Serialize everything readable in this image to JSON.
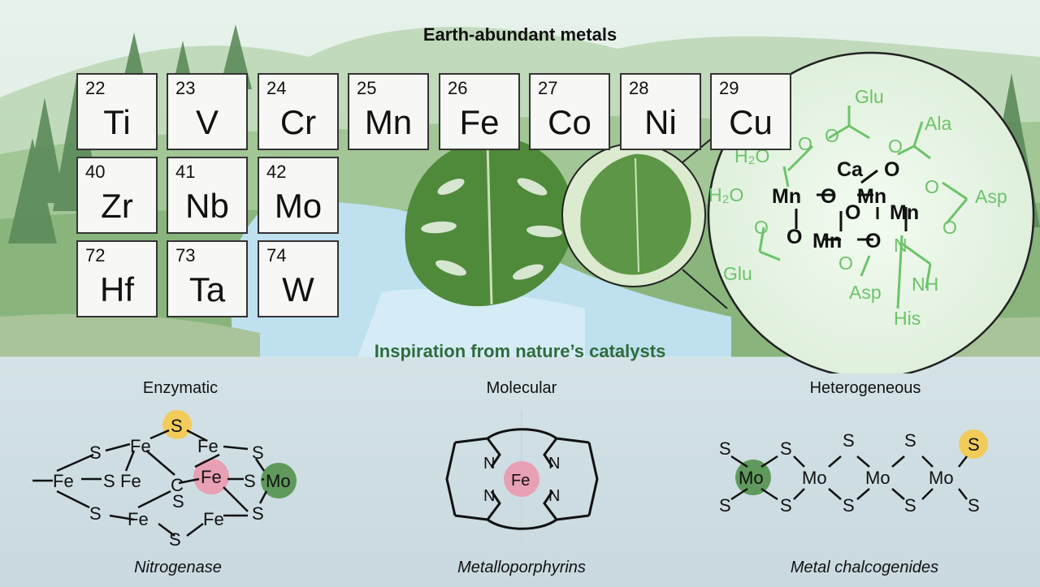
{
  "title": "Earth-abundant metals",
  "subtitle": "Inspiration from nature’s catalysts",
  "elements": [
    {
      "number": "22",
      "symbol": "Ti"
    },
    {
      "number": "23",
      "symbol": "V"
    },
    {
      "number": "24",
      "symbol": "Cr"
    },
    {
      "number": "25",
      "symbol": "Mn"
    },
    {
      "number": "26",
      "symbol": "Fe"
    },
    {
      "number": "27",
      "symbol": "Co"
    },
    {
      "number": "28",
      "symbol": "Ni"
    },
    {
      "number": "29",
      "symbol": "Cu"
    },
    {
      "number": "40",
      "symbol": "Zr"
    },
    {
      "number": "41",
      "symbol": "Nb"
    },
    {
      "number": "42",
      "symbol": "Mo"
    },
    {
      "number": "72",
      "symbol": "Hf"
    },
    {
      "number": "73",
      "symbol": "Ta"
    },
    {
      "number": "74",
      "symbol": "W"
    }
  ],
  "categories": {
    "enzymatic": {
      "label": "Enzymatic",
      "caption": "Nitrogenase"
    },
    "molecular": {
      "label": "Molecular",
      "caption": "Metalloporphyrins"
    },
    "heterogeneous": {
      "label": "Heterogeneous",
      "caption": "Metal chalcogenides"
    }
  },
  "oec": {
    "residues": {
      "glu1": "Glu",
      "ala": "Ala",
      "asp1": "Asp",
      "glu2": "Glu",
      "asp2": "Asp",
      "his": "His",
      "nh": "NH"
    },
    "water": "H₂O",
    "atoms": {
      "ca": "Ca",
      "mn": "Mn",
      "o": "O",
      "n": "N"
    }
  },
  "nitrogenase": {
    "fe": "Fe",
    "s": "S",
    "c": "C",
    "mo": "Mo"
  },
  "porphyrin": {
    "fe": "Fe",
    "n": "N"
  },
  "chalcogenide": {
    "mo": "Mo",
    "s": "S"
  },
  "colors": {
    "leaf": "#4f8a3a",
    "green_text": "#6cc36a",
    "yellow_highlight": "#f2cc5a",
    "pink_highlight": "#e8a0b4",
    "green_highlight": "#5f9a5c",
    "water": "#bfe0ef"
  }
}
